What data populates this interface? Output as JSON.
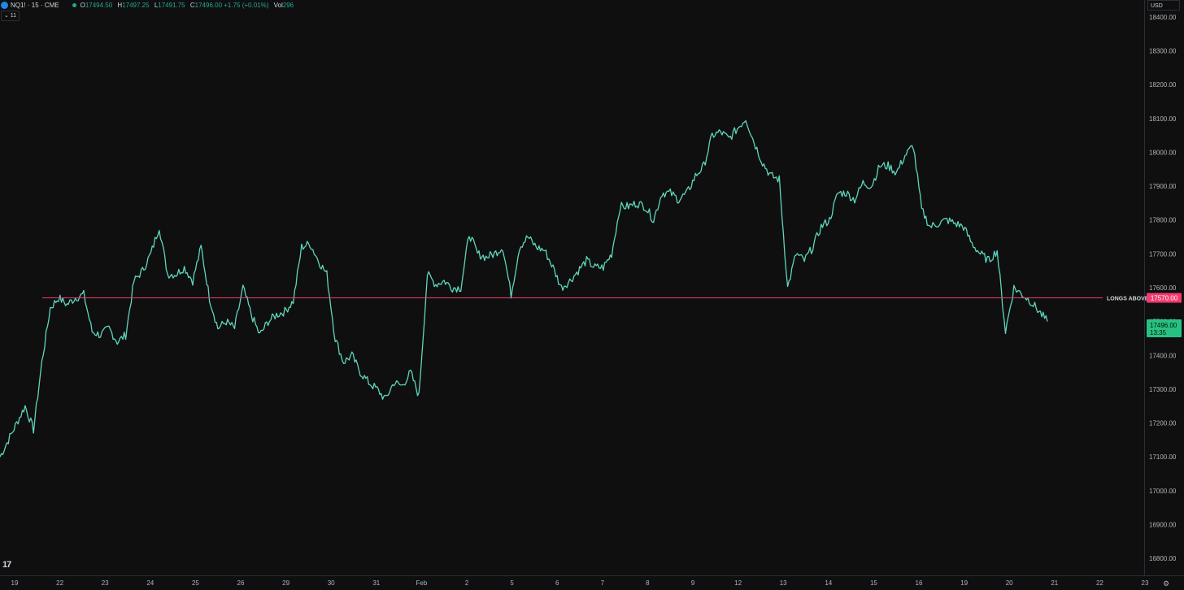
{
  "header": {
    "symbol": "NQ1! · 15 · CME",
    "open_label": "O",
    "open_value": "17494.50",
    "high_label": "H",
    "high_value": "17497.25",
    "low_label": "L",
    "low_value": "17491.75",
    "close_label": "C",
    "close_value": "17496.00 +1.75 (+0.01%)",
    "vol_label": "Vol",
    "vol_value": "296",
    "collapse_label": "⌄ 11",
    "currency": "USD"
  },
  "colors": {
    "background": "#0f0f0f",
    "price": "#5fd6bd",
    "line": "#f23a6f",
    "last_price": "#26c281",
    "grid": "#2a2e39"
  },
  "icons": {
    "symbol": "nq-logo-icon",
    "collapse": "chevron-down-icon",
    "settings": "gear-icon",
    "brand": "tradingview-logo-icon"
  },
  "chart_data": {
    "type": "line",
    "ylim": [
      16750,
      18450
    ],
    "y_ticks": [
      "18400.00",
      "18300.00",
      "18200.00",
      "18100.00",
      "18000.00",
      "17900.00",
      "17800.00",
      "17700.00",
      "17600.00",
      "17500.00",
      "17400.00",
      "17300.00",
      "17200.00",
      "17100.00",
      "17000.00",
      "16900.00",
      "16800.00"
    ],
    "x_ticks": [
      "19",
      "22",
      "23",
      "24",
      "25",
      "26",
      "29",
      "30",
      "31",
      "Feb",
      "2",
      "5",
      "6",
      "7",
      "8",
      "9",
      "12",
      "13",
      "14",
      "15",
      "16",
      "19",
      "20",
      "21",
      "22",
      "23"
    ],
    "series": [
      {
        "values": [
          17100,
          17150,
          17200,
          17250,
          17180,
          17380,
          17540,
          17570,
          17550,
          17570,
          17580,
          17470,
          17460,
          17480,
          17440,
          17460,
          17620,
          17650,
          17700,
          17780,
          17640,
          17640,
          17660,
          17620,
          17720,
          17570,
          17480,
          17500,
          17480,
          17600,
          17520,
          17460,
          17500,
          17520,
          17530,
          17560,
          17720,
          17730,
          17680,
          17640,
          17450,
          17380,
          17400,
          17350,
          17320,
          17300,
          17270,
          17320,
          17310,
          17350,
          17280,
          17640,
          17610,
          17620,
          17600,
          17600,
          17760,
          17700,
          17690,
          17700,
          17720,
          17580,
          17720,
          17750,
          17720,
          17710,
          17660,
          17600,
          17620,
          17650,
          17680,
          17660,
          17660,
          17700,
          17840,
          17840,
          17850,
          17840,
          17800,
          17880,
          17880,
          17860,
          17880,
          17930,
          17960,
          18050,
          18060,
          18040,
          18070,
          18100,
          18030,
          17970,
          17930,
          17920,
          17600,
          17700,
          17680,
          17720,
          17780,
          17800,
          17880,
          17880,
          17860,
          17910,
          17900,
          17960,
          17960,
          17940,
          17990,
          18020,
          17830,
          17780,
          17790,
          17800,
          17790,
          17780,
          17730,
          17700,
          17680,
          17710,
          17470,
          17600,
          17580,
          17560,
          17530,
          17500
        ]
      }
    ],
    "level": {
      "value": 17570,
      "label": "LONGS ABOVE",
      "price_label": "17570.00"
    },
    "last_price": {
      "value": 17496,
      "price_label": "17496.00",
      "countdown": "13:35"
    }
  }
}
